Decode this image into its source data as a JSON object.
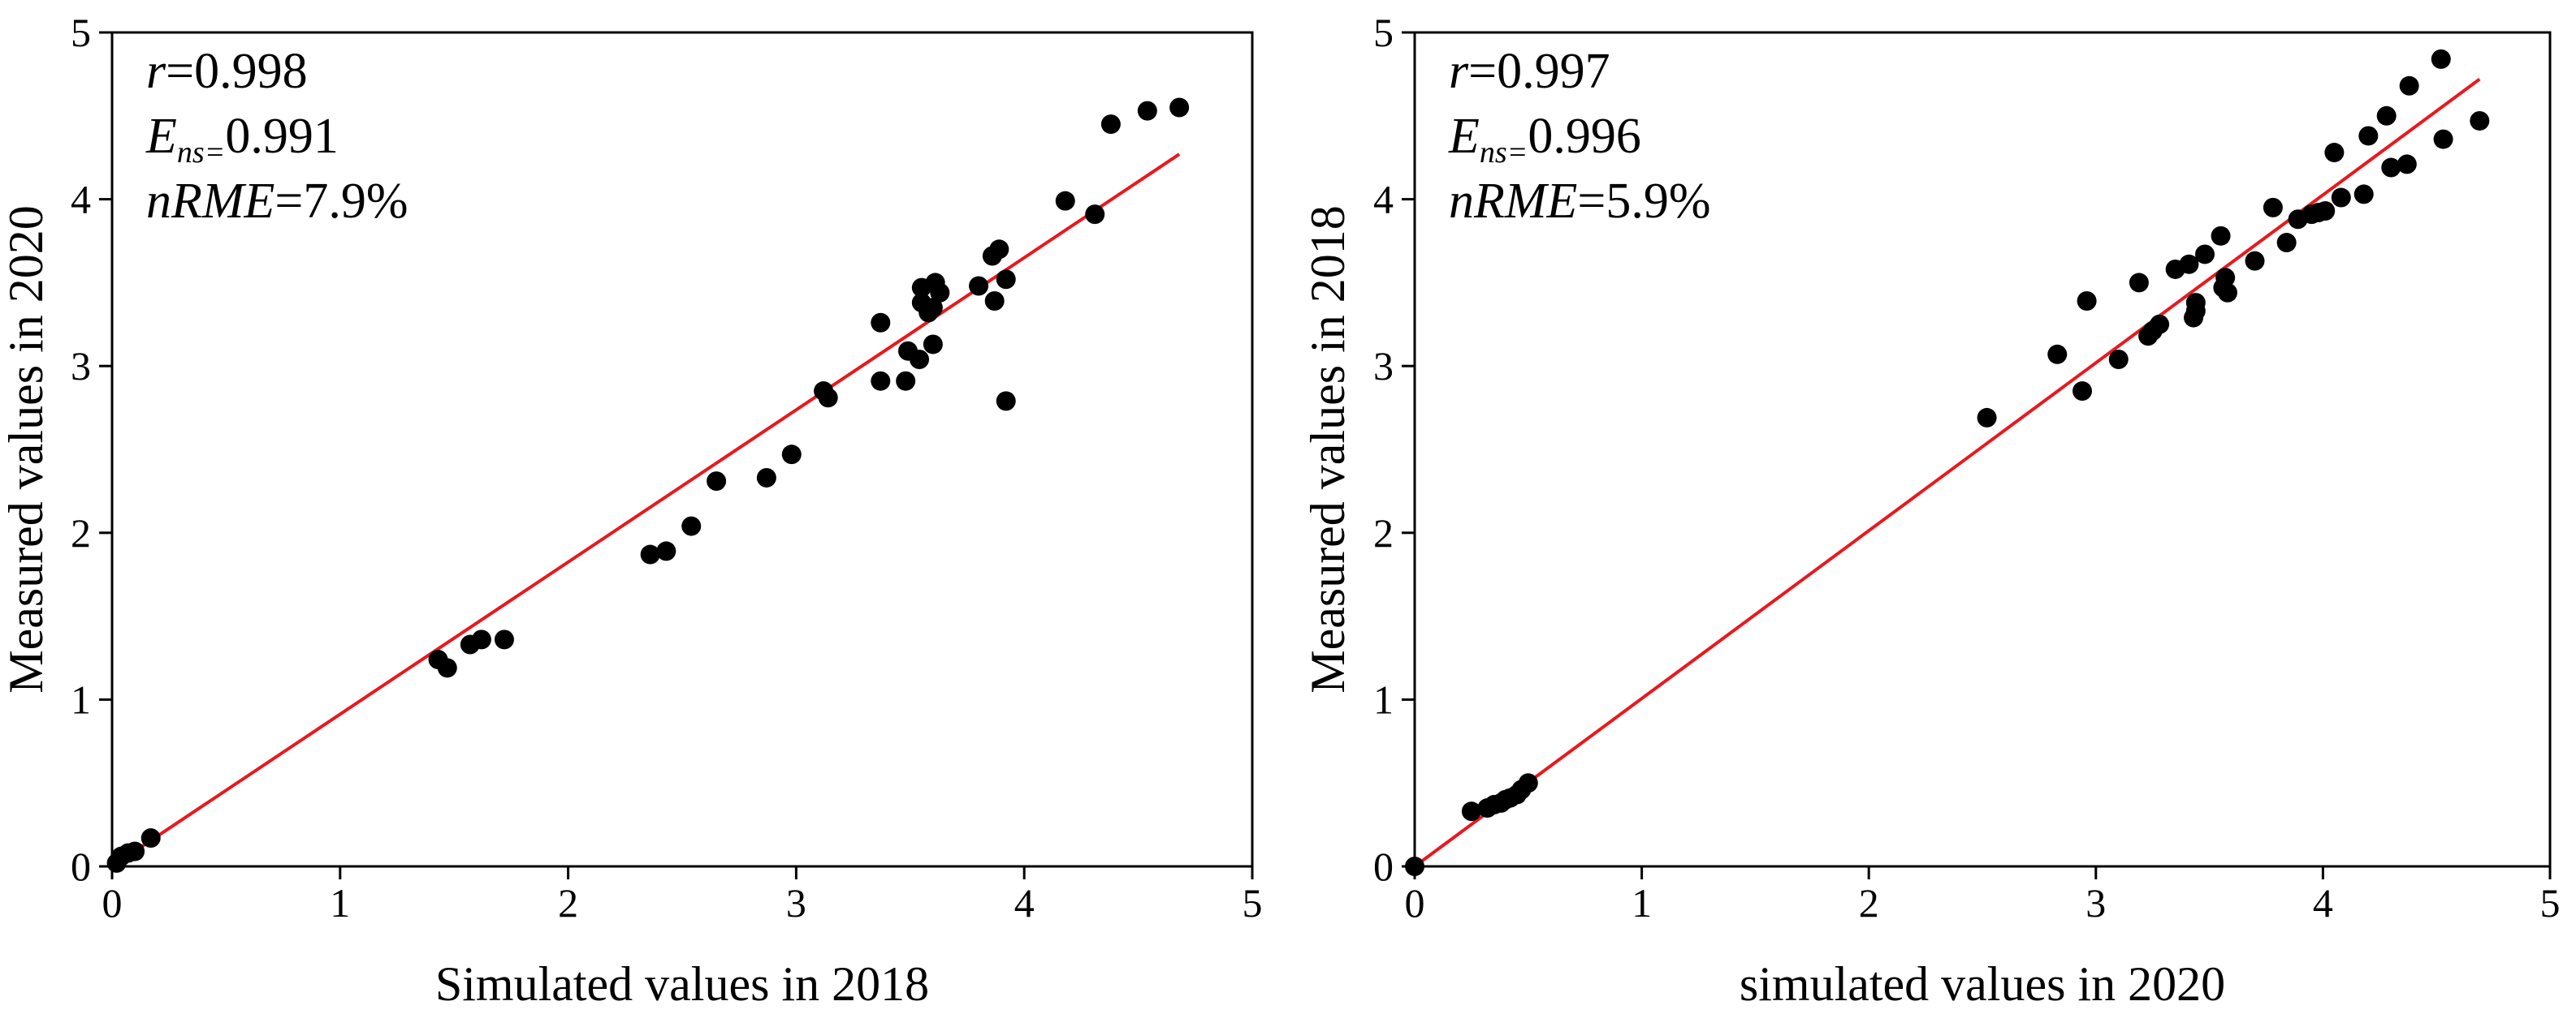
{
  "chart_data": [
    {
      "type": "scatter",
      "xlabel": "Simulated values in 2018",
      "ylabel": "Measured values in 2020",
      "xlim": [
        0,
        5
      ],
      "ylim": [
        0,
        5
      ],
      "xticks": [
        "0",
        "1",
        "2",
        "3",
        "4",
        "5"
      ],
      "yticks": [
        "0",
        "1",
        "2",
        "3",
        "4",
        "5"
      ],
      "grid": false,
      "stats": {
        "r_symbol": "r",
        "r_value": "=0.998",
        "e_symbol": "E",
        "e_subscript": "ns=",
        "e_value": "0.991",
        "nrme_symbol": "nRME",
        "nrme_value": "=7.9%"
      },
      "fit_line": {
        "color": "#e8191e",
        "x": [
          0,
          4.68
        ],
        "y": [
          0,
          4.27
        ]
      },
      "point_color": "#000000",
      "points": [
        [
          0.02,
          0.02
        ],
        [
          0.04,
          0.06
        ],
        [
          0.07,
          0.08
        ],
        [
          0.1,
          0.09
        ],
        [
          0.17,
          0.17
        ],
        [
          1.43,
          1.24
        ],
        [
          1.47,
          1.19
        ],
        [
          1.57,
          1.33
        ],
        [
          1.62,
          1.36
        ],
        [
          1.72,
          1.36
        ],
        [
          2.36,
          1.87
        ],
        [
          2.43,
          1.89
        ],
        [
          2.54,
          2.04
        ],
        [
          2.65,
          2.31
        ],
        [
          2.87,
          2.33
        ],
        [
          2.98,
          2.47
        ],
        [
          3.12,
          2.85
        ],
        [
          3.14,
          2.81
        ],
        [
          3.37,
          3.26
        ],
        [
          3.37,
          2.91
        ],
        [
          3.48,
          2.91
        ],
        [
          3.49,
          3.09
        ],
        [
          3.54,
          3.04
        ],
        [
          3.55,
          3.47
        ],
        [
          3.55,
          3.38
        ],
        [
          3.58,
          3.32
        ],
        [
          3.6,
          3.35
        ],
        [
          3.6,
          3.13
        ],
        [
          3.61,
          3.5
        ],
        [
          3.63,
          3.44
        ],
        [
          3.8,
          3.48
        ],
        [
          3.86,
          3.66
        ],
        [
          3.87,
          3.39
        ],
        [
          3.89,
          3.7
        ],
        [
          3.92,
          3.52
        ],
        [
          3.92,
          2.79
        ],
        [
          4.18,
          3.99
        ],
        [
          4.31,
          3.91
        ],
        [
          4.38,
          4.45
        ],
        [
          4.54,
          4.53
        ],
        [
          4.68,
          4.55
        ]
      ]
    },
    {
      "type": "scatter",
      "xlabel": "simulated values in 2020",
      "ylabel": "Measured values in 2018",
      "xlim": [
        0,
        5
      ],
      "ylim": [
        0,
        5
      ],
      "xticks": [
        "0",
        "1",
        "2",
        "3",
        "4",
        "5"
      ],
      "yticks": [
        "0",
        "1",
        "2",
        "3",
        "4",
        "5"
      ],
      "grid": false,
      "stats": {
        "r_symbol": "r",
        "r_value": "=0.997",
        "e_symbol": "E",
        "e_subscript": "ns=",
        "e_value": "0.996",
        "nrme_symbol": "nRME",
        "nrme_value": "=5.9%"
      },
      "fit_line": {
        "color": "#e8191e",
        "x": [
          0,
          4.69
        ],
        "y": [
          0,
          4.72
        ]
      },
      "point_color": "#000000",
      "points": [
        [
          0.0,
          0.0
        ],
        [
          0.25,
          0.33
        ],
        [
          0.32,
          0.35
        ],
        [
          0.35,
          0.37
        ],
        [
          0.38,
          0.38
        ],
        [
          0.4,
          0.4
        ],
        [
          0.42,
          0.41
        ],
        [
          0.45,
          0.43
        ],
        [
          0.47,
          0.46
        ],
        [
          0.5,
          0.5
        ],
        [
          2.52,
          2.69
        ],
        [
          2.83,
          3.07
        ],
        [
          2.94,
          2.85
        ],
        [
          2.96,
          3.39
        ],
        [
          3.1,
          3.04
        ],
        [
          3.19,
          3.5
        ],
        [
          3.23,
          3.18
        ],
        [
          3.25,
          3.21
        ],
        [
          3.28,
          3.25
        ],
        [
          3.35,
          3.58
        ],
        [
          3.41,
          3.61
        ],
        [
          3.43,
          3.29
        ],
        [
          3.44,
          3.33
        ],
        [
          3.44,
          3.38
        ],
        [
          3.48,
          3.67
        ],
        [
          3.55,
          3.78
        ],
        [
          3.56,
          3.47
        ],
        [
          3.57,
          3.53
        ],
        [
          3.58,
          3.44
        ],
        [
          3.7,
          3.63
        ],
        [
          3.78,
          3.95
        ],
        [
          3.84,
          3.74
        ],
        [
          3.89,
          3.88
        ],
        [
          3.95,
          3.91
        ],
        [
          3.98,
          3.92
        ],
        [
          4.01,
          3.93
        ],
        [
          4.05,
          4.28
        ],
        [
          4.08,
          4.01
        ],
        [
          4.18,
          4.03
        ],
        [
          4.2,
          4.38
        ],
        [
          4.28,
          4.5
        ],
        [
          4.3,
          4.19
        ],
        [
          4.37,
          4.21
        ],
        [
          4.38,
          4.68
        ],
        [
          4.52,
          4.84
        ],
        [
          4.53,
          4.36
        ],
        [
          4.69,
          4.47
        ]
      ]
    }
  ]
}
